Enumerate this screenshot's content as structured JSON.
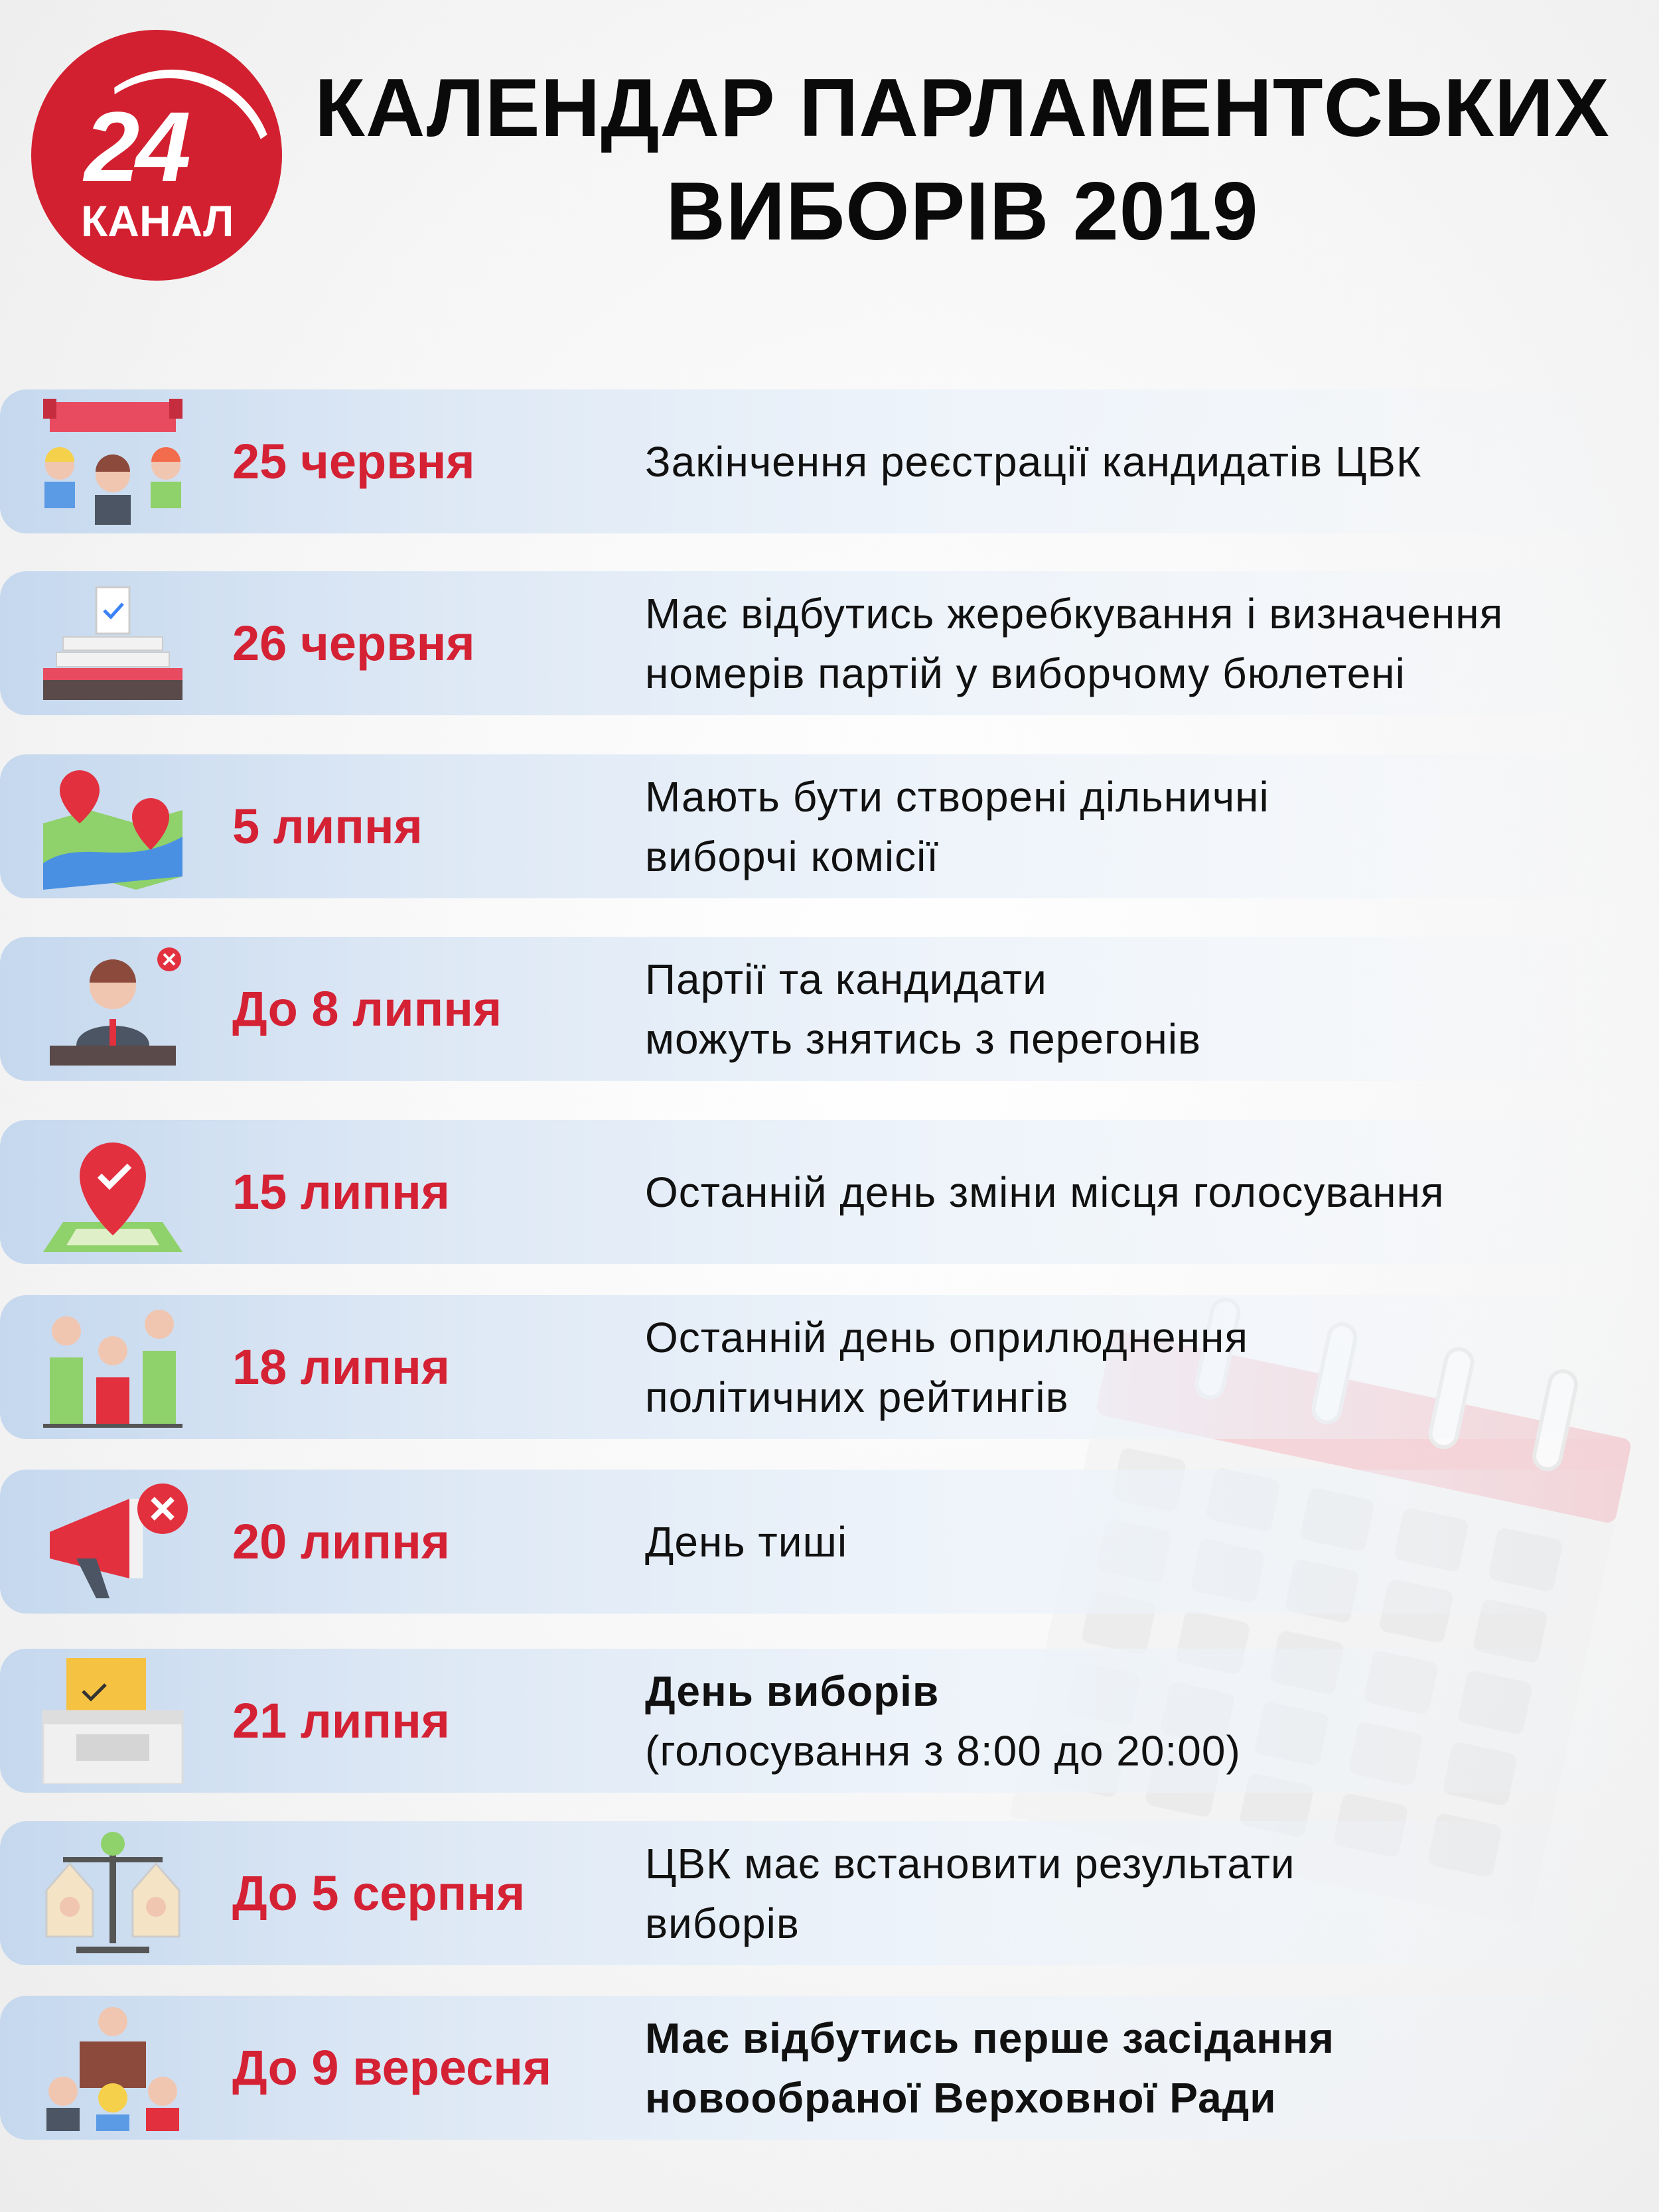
{
  "logo": {
    "number": "24",
    "word": "КАНАЛ",
    "color": "#d32030"
  },
  "header": {
    "title_line1": "КАЛЕНДАР ПАРЛАМЕНТСЬКИХ",
    "title_line2": "ВИБОРІВ 2019"
  },
  "colors": {
    "date": "#d42234",
    "text": "#111111",
    "row_band": "#c5d8ee"
  },
  "events": [
    {
      "date": "25 червня",
      "lines": [
        "Закінчення реєстрації кандидатів ЦВК"
      ],
      "icon": "candidates-banner-icon"
    },
    {
      "date": "26 червня",
      "lines": [
        "Має відбутись жеребкування і визначення",
        "номерів партій у виборчому бюлетені"
      ],
      "icon": "ballot-stack-icon"
    },
    {
      "date": "5 липня",
      "lines": [
        "Мають бути створені дільничні",
        "виборчі комісії"
      ],
      "icon": "map-pins-icon"
    },
    {
      "date": "До 8 липня",
      "lines": [
        "Партії та кандидати",
        "можуть знятись з перегонів"
      ],
      "icon": "speaker-withdraw-icon"
    },
    {
      "date": "15 липня",
      "lines": [
        "Останній день зміни місця голосування"
      ],
      "icon": "location-pin-icon"
    },
    {
      "date": "18 липня",
      "lines": [
        "Останній день оприлюднення",
        "політичних рейтингів"
      ],
      "icon": "ratings-chart-icon"
    },
    {
      "date": "20 липня",
      "lines": [
        "День тиші"
      ],
      "icon": "megaphone-off-icon"
    },
    {
      "date": "21 липня",
      "lines": [
        "День виборів",
        "(голосування з 8:00 до 20:00)"
      ],
      "icon": "ballot-box-icon"
    },
    {
      "date": "До 5 серпня",
      "lines": [
        "ЦВК має встановити результати",
        "виборів"
      ],
      "icon": "scales-icon"
    },
    {
      "date": "До 9 вересня",
      "lines": [
        "Має відбутись перше засідання",
        "новообраної Верховної Ради"
      ],
      "icon": "parliament-session-icon"
    }
  ]
}
